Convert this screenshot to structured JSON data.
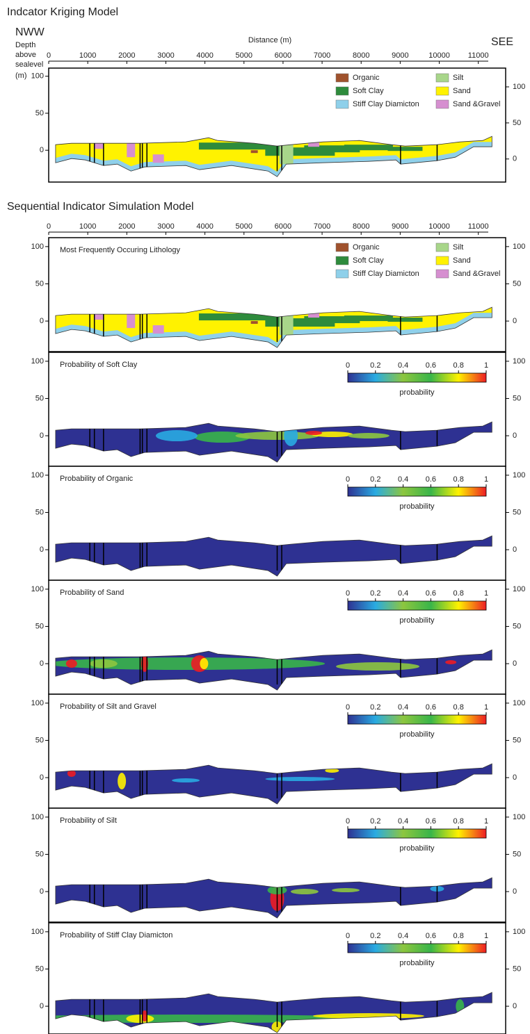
{
  "figure": {
    "title": "Indcator Kriging Model",
    "sim_title": "Sequential Indicator Simulation Model",
    "x_label": "Distance (m)",
    "left_end": "NWW",
    "right_end": "SEE",
    "y_label": [
      "Depth",
      "above",
      "sealevel",
      "(m)"
    ],
    "xlim": [
      0,
      11700
    ],
    "xticks": [
      0,
      1000,
      2000,
      3000,
      4000,
      5000,
      6000,
      7000,
      8000,
      9000,
      10000,
      11000
    ],
    "legend": [
      {
        "name": "Organic",
        "color": "#a0522d"
      },
      {
        "name": "Soft Clay",
        "color": "#2e8b3c"
      },
      {
        "name": "Stiff Clay Diamicton",
        "color": "#8fd0ea"
      },
      {
        "name": "Silt",
        "color": "#a8d68a"
      },
      {
        "name": "Sand",
        "color": "#fff200"
      },
      {
        "name": "Sand &Gravel",
        "color": "#d68fd0"
      }
    ],
    "colorbar": {
      "lim": [
        0,
        1
      ],
      "ticks": [
        0,
        0.2,
        0.4,
        0.6,
        0.8,
        1
      ],
      "label": "probability",
      "colors": [
        "#2e3192",
        "#29abe2",
        "#8dc63f",
        "#39b54a",
        "#fff200",
        "#ed1c24"
      ]
    }
  },
  "chart_data": [
    {
      "type": "section",
      "legend": true,
      "ylim": [
        -43,
        111
      ],
      "yticks": [
        0,
        50,
        100
      ],
      "y2lim": [
        -32,
        126
      ],
      "y2ticks": [
        0,
        50,
        100
      ]
    },
    {
      "type": "section",
      "title": "Most Frequently Occuring Lithology",
      "legend": true,
      "ylim": [
        -41,
        112
      ],
      "yticks": [
        0,
        50,
        100
      ],
      "y2lim": [
        -41,
        112
      ],
      "y2ticks": [
        0,
        50,
        100
      ]
    },
    {
      "type": "section",
      "title": "Probability of Soft Clay",
      "colorbar": true,
      "ylim": [
        -41,
        112
      ],
      "yticks": [
        0,
        50,
        100
      ],
      "y2lim": [
        -41,
        112
      ],
      "y2ticks": [
        0,
        50,
        100
      ]
    },
    {
      "type": "section",
      "title": "Probability of Organic",
      "colorbar": true,
      "ylim": [
        -41,
        112
      ],
      "yticks": [
        0,
        50,
        100
      ],
      "y2lim": [
        -41,
        112
      ],
      "y2ticks": [
        0,
        50,
        100
      ]
    },
    {
      "type": "section",
      "title": "Probability of Sand",
      "colorbar": true,
      "ylim": [
        -41,
        112
      ],
      "yticks": [
        0,
        50,
        100
      ],
      "y2lim": [
        -41,
        112
      ],
      "y2ticks": [
        0,
        50,
        100
      ]
    },
    {
      "type": "section",
      "title": "Probability of Silt and Gravel",
      "colorbar": true,
      "ylim": [
        -41,
        112
      ],
      "yticks": [
        0,
        50,
        100
      ],
      "y2lim": [
        -41,
        112
      ],
      "y2ticks": [
        0,
        50,
        100
      ]
    },
    {
      "type": "section",
      "title": "Probability of Silt",
      "colorbar": true,
      "ylim": [
        -41,
        112
      ],
      "yticks": [
        0,
        50,
        100
      ],
      "y2lim": [
        -41,
        112
      ],
      "y2ticks": [
        0,
        50,
        100
      ]
    },
    {
      "type": "section",
      "title": "Probability of Stiff Clay Diamicton",
      "colorbar": true,
      "ylim": [
        -41,
        112
      ],
      "yticks": [
        0,
        50,
        100
      ],
      "y2lim": [
        -41,
        112
      ],
      "y2ticks": [
        0,
        50,
        100
      ]
    }
  ]
}
